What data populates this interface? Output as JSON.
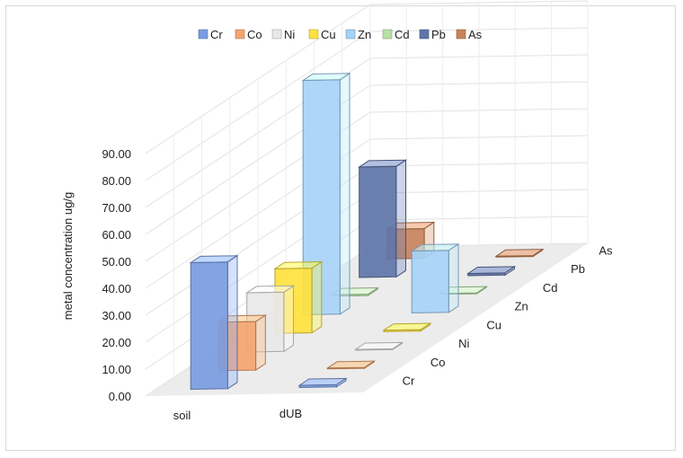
{
  "chart_data": {
    "type": "bar",
    "subtype": "3d-column",
    "title": "",
    "ylabel": "metal concentration ug/g",
    "ylim": [
      0,
      90
    ],
    "yticks": [
      "0.00",
      "10.00",
      "20.00",
      "30.00",
      "40.00",
      "50.00",
      "60.00",
      "70.00",
      "80.00",
      "90.00"
    ],
    "categories": [
      "soil",
      "dUB"
    ],
    "legend_position": "top",
    "series": [
      {
        "name": "Cr",
        "color": "#7a9be0",
        "values": [
          47,
          0.8
        ]
      },
      {
        "name": "Co",
        "color": "#f4a56e",
        "values": [
          18,
          0
        ]
      },
      {
        "name": "Ni",
        "color": "#e8e8e8",
        "values": [
          22,
          0
        ]
      },
      {
        "name": "Cu",
        "color": "#ffe23f",
        "values": [
          24,
          0.5
        ]
      },
      {
        "name": "Zn",
        "color": "#a6d2f7",
        "values": [
          87,
          23
        ]
      },
      {
        "name": "Cd",
        "color": "#b6e0a8",
        "values": [
          0.5,
          0
        ]
      },
      {
        "name": "Pb",
        "color": "#5f75a8",
        "values": [
          41,
          0.8
        ]
      },
      {
        "name": "As",
        "color": "#c8825a",
        "values": [
          11,
          0
        ]
      }
    ]
  }
}
